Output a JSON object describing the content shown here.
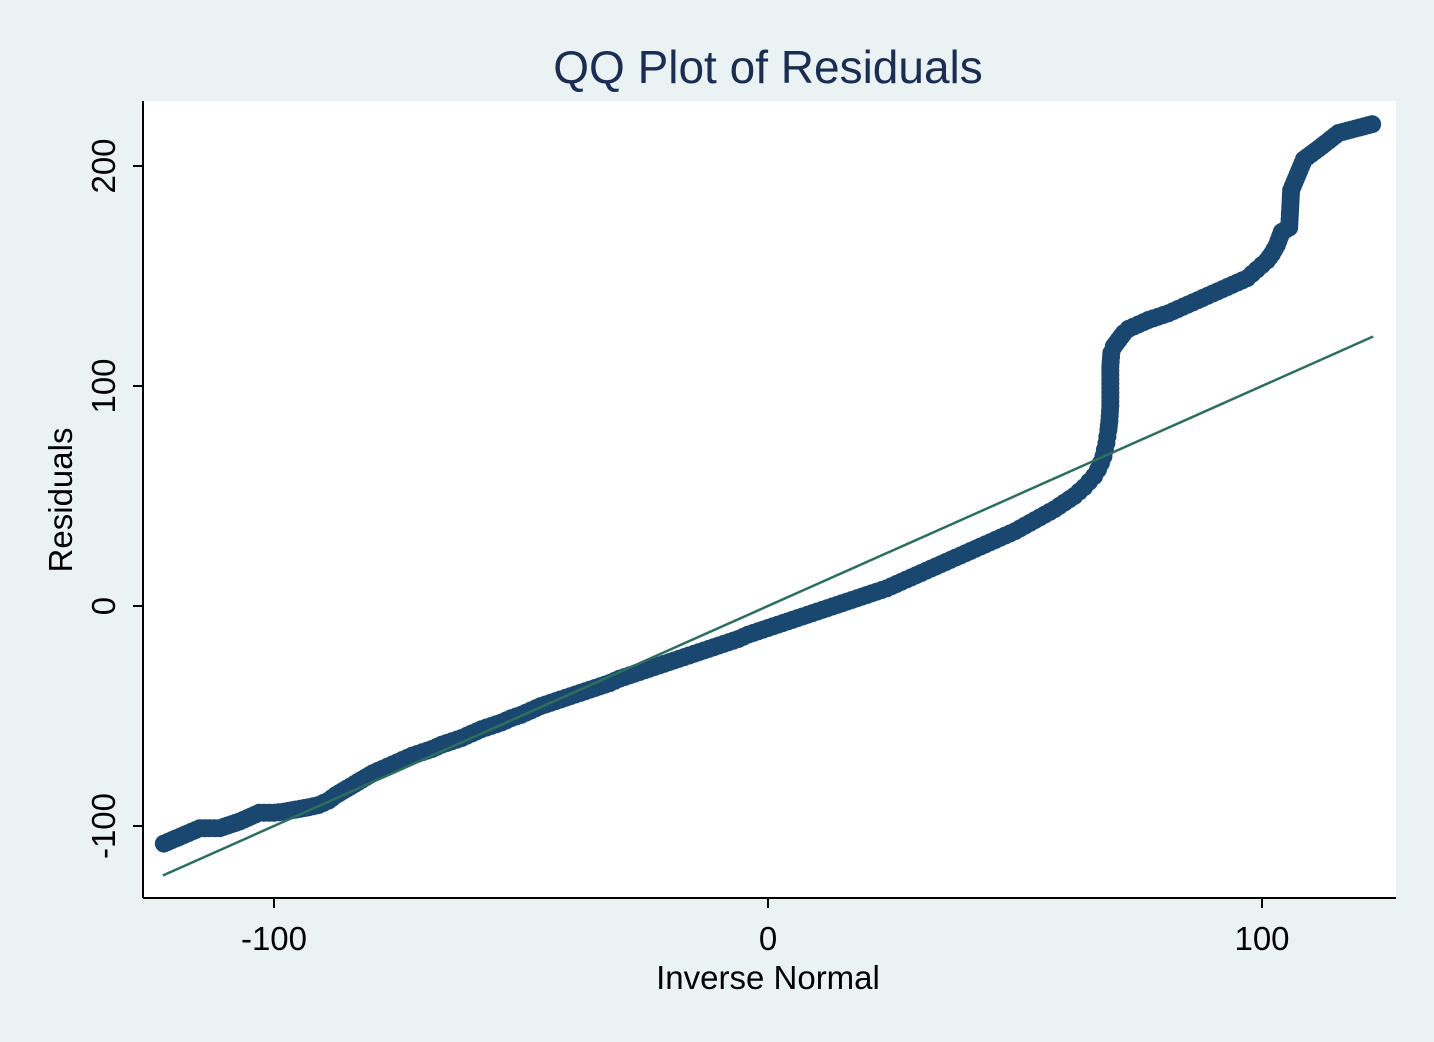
{
  "chart_data": {
    "type": "scatter",
    "title": "QQ Plot of Residuals",
    "xlabel": "Inverse Normal",
    "ylabel": "Residuals",
    "xlim": [
      -127,
      127
    ],
    "ylim": [
      -133,
      230
    ],
    "xticks": [
      -100,
      0,
      100
    ],
    "yticks": [
      -100,
      0,
      100,
      200
    ],
    "xtick_labels": [
      "-100",
      "0",
      "100"
    ],
    "ytick_labels": [
      "-100",
      "0",
      "100",
      "200"
    ],
    "grid": false,
    "legend": "none",
    "colors": {
      "background": "#eaf2f3",
      "plot_background": "#ffffff",
      "points": "#1a476f",
      "reference_line": "#2d6e5e",
      "title": "#1c2d52"
    },
    "reference_line": {
      "x": [
        -122.5,
        122.5
      ],
      "y": [
        -122.5,
        122.5
      ]
    },
    "series": [
      {
        "type": "scatter",
        "points": [
          [
            -122.3,
            -108.0
          ],
          [
            -115.0,
            -101.0
          ],
          [
            -111.0,
            -101.0
          ],
          [
            -107.0,
            -98.0
          ],
          [
            -103.0,
            -94.0
          ],
          [
            -100.0,
            -94.0
          ],
          [
            -98.0,
            -93.5
          ],
          [
            -95.5,
            -92.5
          ],
          [
            -93.0,
            -91.5
          ],
          [
            -91.0,
            -90.5
          ],
          [
            -89.0,
            -88.5
          ],
          [
            -87.5,
            -86.0
          ],
          [
            -86.0,
            -84.0
          ],
          [
            -84.5,
            -82.0
          ],
          [
            -83.0,
            -80.0
          ],
          [
            -81.5,
            -78.0
          ],
          [
            -80.0,
            -76.0
          ],
          [
            -78.0,
            -74.0
          ],
          [
            -76.0,
            -72.0
          ],
          [
            -74.0,
            -70.0
          ],
          [
            -72.0,
            -68.0
          ],
          [
            -70.0,
            -66.5
          ],
          [
            -68.0,
            -65.0
          ],
          [
            -66.0,
            -63.0
          ],
          [
            -64.0,
            -61.5
          ],
          [
            -62.0,
            -60.0
          ],
          [
            -60.0,
            -58.0
          ],
          [
            -58.0,
            -56.0
          ],
          [
            -56.0,
            -54.5
          ],
          [
            -54.0,
            -53.0
          ],
          [
            -52.0,
            -51.0
          ],
          [
            -50.0,
            -49.5
          ],
          [
            -48.0,
            -47.5
          ],
          [
            -46.0,
            -45.5
          ],
          [
            -44.0,
            -44.0
          ],
          [
            -42.0,
            -42.5
          ],
          [
            -40.0,
            -41.0
          ],
          [
            -38.0,
            -39.5
          ],
          [
            -36.0,
            -38.0
          ],
          [
            -34.0,
            -36.5
          ],
          [
            -32.0,
            -35.0
          ],
          [
            -30.0,
            -33.0
          ],
          [
            -28.0,
            -31.5
          ],
          [
            -26.0,
            -30.0
          ],
          [
            -24.0,
            -28.5
          ],
          [
            -22.0,
            -27.0
          ],
          [
            -20.0,
            -25.5
          ],
          [
            -18.0,
            -24.0
          ],
          [
            -16.0,
            -22.5
          ],
          [
            -14.0,
            -21.0
          ],
          [
            -12.0,
            -19.5
          ],
          [
            -10.0,
            -18.0
          ],
          [
            -8.0,
            -16.5
          ],
          [
            -6.0,
            -15.0
          ],
          [
            -4.0,
            -13.0
          ],
          [
            -2.0,
            -11.5
          ],
          [
            0.0,
            -10.0
          ],
          [
            2.0,
            -8.5
          ],
          [
            4.0,
            -7.0
          ],
          [
            6.0,
            -5.5
          ],
          [
            8.0,
            -4.0
          ],
          [
            10.0,
            -2.5
          ],
          [
            12.0,
            -1.0
          ],
          [
            14.0,
            0.5
          ],
          [
            16.0,
            2.0
          ],
          [
            18.0,
            3.5
          ],
          [
            20.0,
            5.0
          ],
          [
            22.0,
            6.5
          ],
          [
            24.0,
            8.0
          ],
          [
            26.0,
            10.0
          ],
          [
            28.0,
            12.0
          ],
          [
            30.0,
            14.0
          ],
          [
            32.0,
            16.0
          ],
          [
            34.0,
            18.0
          ],
          [
            36.0,
            20.0
          ],
          [
            38.0,
            22.0
          ],
          [
            40.0,
            24.0
          ],
          [
            42.0,
            26.0
          ],
          [
            44.0,
            28.0
          ],
          [
            46.0,
            30.0
          ],
          [
            48.0,
            32.0
          ],
          [
            50.0,
            34.0
          ],
          [
            52.0,
            36.5
          ],
          [
            54.0,
            39.0
          ],
          [
            56.0,
            41.5
          ],
          [
            58.0,
            44.0
          ],
          [
            60.0,
            47.0
          ],
          [
            62.0,
            50.0
          ],
          [
            63.0,
            52.0
          ],
          [
            64.0,
            54.0
          ],
          [
            65.0,
            56.5
          ],
          [
            66.0,
            59.0
          ],
          [
            66.8,
            62.0
          ],
          [
            67.4,
            65.0
          ],
          [
            67.9,
            68.0
          ],
          [
            68.2,
            71.0
          ],
          [
            68.5,
            74.0
          ],
          [
            68.7,
            77.0
          ],
          [
            68.9,
            80.0
          ],
          [
            69.1,
            84.0
          ],
          [
            69.3,
            91.0
          ],
          [
            69.3,
            109.0
          ],
          [
            69.5,
            115.0
          ],
          [
            70.0,
            118.0
          ],
          [
            71.0,
            121.0
          ],
          [
            72.0,
            124.0
          ],
          [
            73.0,
            126.0
          ],
          [
            75.0,
            128.0
          ],
          [
            77.0,
            130.0
          ],
          [
            79.0,
            131.5
          ],
          [
            81.0,
            133.0
          ],
          [
            83.0,
            135.0
          ],
          [
            85.0,
            137.0
          ],
          [
            87.0,
            139.0
          ],
          [
            89.0,
            141.0
          ],
          [
            91.0,
            143.0
          ],
          [
            93.0,
            145.0
          ],
          [
            95.0,
            147.0
          ],
          [
            97.0,
            149.0
          ],
          [
            98.0,
            151.0
          ],
          [
            99.0,
            153.0
          ],
          [
            100.0,
            155.0
          ],
          [
            101.0,
            157.0
          ],
          [
            102.0,
            160.0
          ],
          [
            103.0,
            164.0
          ],
          [
            104.0,
            170.0
          ],
          [
            105.5,
            172.0
          ],
          [
            105.9,
            189.0
          ],
          [
            108.5,
            203.0
          ],
          [
            111.5,
            208.0
          ],
          [
            115.5,
            215.0
          ],
          [
            122.3,
            219.0
          ]
        ]
      }
    ]
  }
}
